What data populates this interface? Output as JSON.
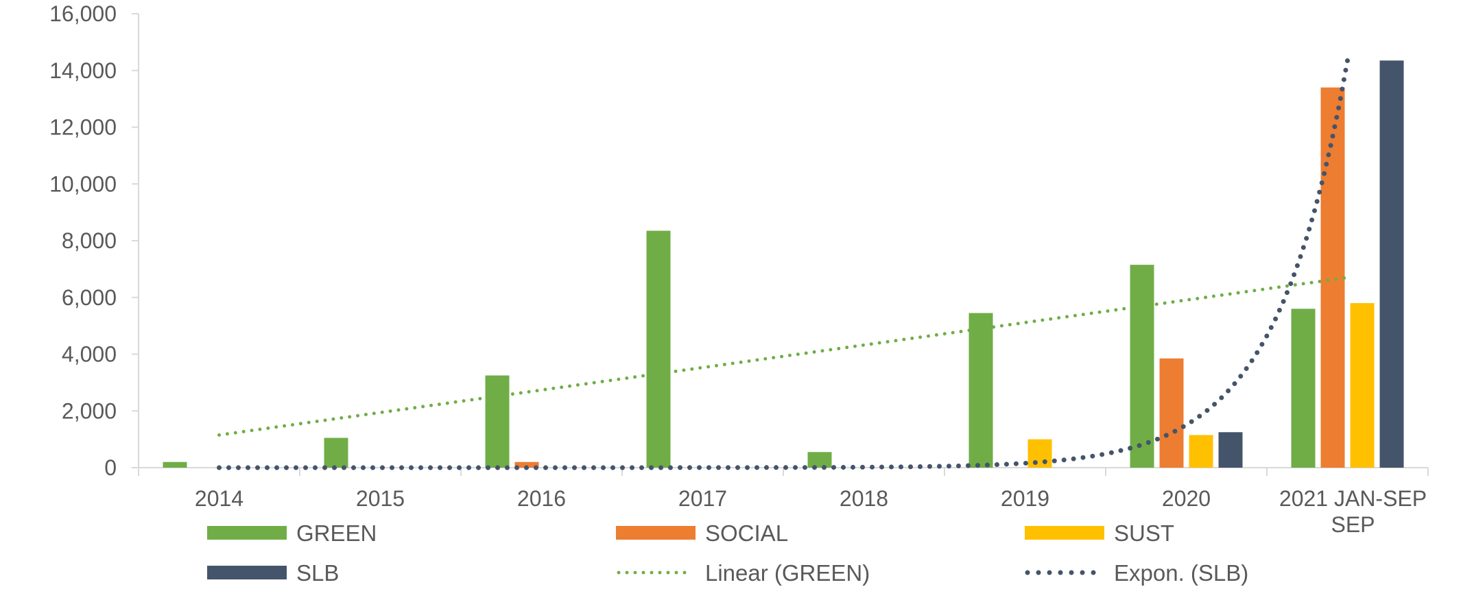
{
  "chart_data": {
    "type": "bar",
    "categories": [
      "2014",
      "2015",
      "2016",
      "2017",
      "2018",
      "2019",
      "2020",
      "2021 JAN-SEP"
    ],
    "series": [
      {
        "name": "GREEN",
        "color": "#70AD47",
        "values": [
          200,
          1050,
          3250,
          8350,
          550,
          5450,
          7150,
          5600
        ]
      },
      {
        "name": "SOCIAL",
        "color": "#ED7D31",
        "values": [
          0,
          0,
          200,
          0,
          0,
          0,
          3850,
          13400
        ]
      },
      {
        "name": "SUST",
        "color": "#FFC000",
        "values": [
          0,
          0,
          0,
          0,
          0,
          1000,
          1150,
          5800
        ]
      },
      {
        "name": "SLB",
        "color": "#44546A",
        "values": [
          0,
          0,
          0,
          0,
          0,
          0,
          1250,
          14350
        ]
      }
    ],
    "trendlines": [
      {
        "name": "Linear (GREEN)",
        "type": "linear",
        "series": "GREEN",
        "color": "#70AD47",
        "start": 1150,
        "end": 6700
      },
      {
        "name": "Expon. (SLB)",
        "type": "exponential",
        "series": "SLB",
        "color": "#44546A",
        "start": 0.002,
        "end": 14350
      }
    ],
    "ylim": [
      0,
      16000
    ],
    "yticks": [
      "0",
      "2,000",
      "4,000",
      "6,000",
      "8,000",
      "10,000",
      "12,000",
      "14,000",
      "16,000"
    ],
    "title": "",
    "xlabel": "",
    "ylabel": "",
    "legend_position": "bottom",
    "legend": [
      "GREEN",
      "SOCIAL",
      "SUST",
      "SLB",
      "Linear (GREEN)",
      "Expon. (SLB)"
    ]
  }
}
